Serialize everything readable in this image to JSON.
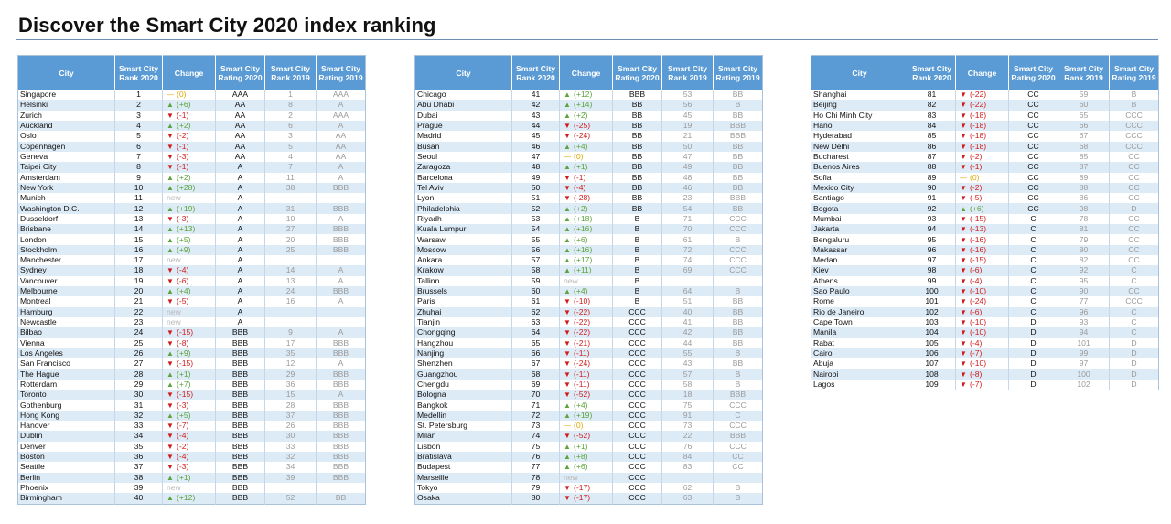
{
  "title": "Discover the Smart City 2020 index ranking",
  "colors": {
    "header": "#5b9bd5",
    "stripe": "#ddebf7",
    "up": "#5ba33b",
    "down": "#d11a1a",
    "same": "#e3a800",
    "muted": "#9a9a9a"
  },
  "icons": {
    "up": "triangle-up-icon",
    "down": "triangle-down-icon",
    "same": "dash-icon"
  },
  "headers": [
    "City",
    "Smart City Rank 2020",
    "Change",
    "Smart City Rating 2020",
    "Smart City Rank 2019",
    "Smart City Rating 2019"
  ],
  "tables": [
    [
      [
        "Singapore",
        "1",
        "—",
        "(0)",
        "AAA",
        "1",
        "AAA"
      ],
      [
        "Helsinki",
        "2",
        "▲",
        "(+6)",
        "AA",
        "8",
        "A"
      ],
      [
        "Zurich",
        "3",
        "▼",
        "(-1)",
        "AA",
        "2",
        "AAA"
      ],
      [
        "Auckland",
        "4",
        "▲",
        "(+2)",
        "AA",
        "6",
        "A"
      ],
      [
        "Oslo",
        "5",
        "▼",
        "(-2)",
        "AA",
        "3",
        "AA"
      ],
      [
        "Copenhagen",
        "6",
        "▼",
        "(-1)",
        "AA",
        "5",
        "AA"
      ],
      [
        "Geneva",
        "7",
        "▼",
        "(-3)",
        "AA",
        "4",
        "AA"
      ],
      [
        "Taipei City",
        "8",
        "▼",
        "(-1)",
        "A",
        "7",
        "A"
      ],
      [
        "Amsterdam",
        "9",
        "▲",
        "(+2)",
        "A",
        "11",
        "A"
      ],
      [
        "New York",
        "10",
        "▲",
        "(+28)",
        "A",
        "38",
        "BBB"
      ],
      [
        "Munich",
        "11",
        "",
        "new",
        "A",
        "",
        ""
      ],
      [
        "Washington D.C.",
        "12",
        "▲",
        "(+19)",
        "A",
        "31",
        "BBB"
      ],
      [
        "Dusseldorf",
        "13",
        "▼",
        "(-3)",
        "A",
        "10",
        "A"
      ],
      [
        "Brisbane",
        "14",
        "▲",
        "(+13)",
        "A",
        "27",
        "BBB"
      ],
      [
        "London",
        "15",
        "▲",
        "(+5)",
        "A",
        "20",
        "BBB"
      ],
      [
        "Stockholm",
        "16",
        "▲",
        "(+9)",
        "A",
        "25",
        "BBB"
      ],
      [
        "Manchester",
        "17",
        "",
        "new",
        "A",
        "",
        ""
      ],
      [
        "Sydney",
        "18",
        "▼",
        "(-4)",
        "A",
        "14",
        "A"
      ],
      [
        "Vancouver",
        "19",
        "▼",
        "(-6)",
        "A",
        "13",
        "A"
      ],
      [
        "Melbourne",
        "20",
        "▲",
        "(+4)",
        "A",
        "24",
        "BBB"
      ],
      [
        "Montreal",
        "21",
        "▼",
        "(-5)",
        "A",
        "16",
        "A"
      ],
      [
        "Hamburg",
        "22",
        "",
        "new",
        "A",
        "",
        ""
      ],
      [
        "Newcastle",
        "23",
        "",
        "new",
        "A",
        "",
        ""
      ],
      [
        "Bilbao",
        "24",
        "▼",
        "(-15)",
        "BBB",
        "9",
        "A"
      ],
      [
        "Vienna",
        "25",
        "▼",
        "(-8)",
        "BBB",
        "17",
        "BBB"
      ],
      [
        "Los Angeles",
        "26",
        "▲",
        "(+9)",
        "BBB",
        "35",
        "BBB"
      ],
      [
        "San Francisco",
        "27",
        "▼",
        "(-15)",
        "BBB",
        "12",
        "A"
      ],
      [
        "The Hague",
        "28",
        "▲",
        "(+1)",
        "BBB",
        "29",
        "BBB"
      ],
      [
        "Rotterdam",
        "29",
        "▲",
        "(+7)",
        "BBB",
        "36",
        "BBB"
      ],
      [
        "Toronto",
        "30",
        "▼",
        "(-15)",
        "BBB",
        "15",
        "A"
      ],
      [
        "Gothenburg",
        "31",
        "▼",
        "(-3)",
        "BBB",
        "28",
        "BBB"
      ],
      [
        "Hong Kong",
        "32",
        "▲",
        "(+5)",
        "BBB",
        "37",
        "BBB"
      ],
      [
        "Hanover",
        "33",
        "▼",
        "(-7)",
        "BBB",
        "26",
        "BBB"
      ],
      [
        "Dublin",
        "34",
        "▼",
        "(-4)",
        "BBB",
        "30",
        "BBB"
      ],
      [
        "Denver",
        "35",
        "▼",
        "(-2)",
        "BBB",
        "33",
        "BBB"
      ],
      [
        "Boston",
        "36",
        "▼",
        "(-4)",
        "BBB",
        "32",
        "BBB"
      ],
      [
        "Seattle",
        "37",
        "▼",
        "(-3)",
        "BBB",
        "34",
        "BBB"
      ],
      [
        "Berlin",
        "38",
        "▲",
        "(+1)",
        "BBB",
        "39",
        "BBB"
      ],
      [
        "Phoenix",
        "39",
        "",
        "new",
        "BBB",
        "",
        ""
      ],
      [
        "Birmingham",
        "40",
        "▲",
        "(+12)",
        "BBB",
        "52",
        "BB"
      ]
    ],
    [
      [
        "Chicago",
        "41",
        "▲",
        "(+12)",
        "BBB",
        "53",
        "BB"
      ],
      [
        "Abu Dhabi",
        "42",
        "▲",
        "(+14)",
        "BB",
        "56",
        "B"
      ],
      [
        "Dubai",
        "43",
        "▲",
        "(+2)",
        "BB",
        "45",
        "BB"
      ],
      [
        "Prague",
        "44",
        "▼",
        "(-25)",
        "BB",
        "19",
        "BBB"
      ],
      [
        "Madrid",
        "45",
        "▼",
        "(-24)",
        "BB",
        "21",
        "BBB"
      ],
      [
        "Busan",
        "46",
        "▲",
        "(+4)",
        "BB",
        "50",
        "BB"
      ],
      [
        "Seoul",
        "47",
        "—",
        "(0)",
        "BB",
        "47",
        "BB"
      ],
      [
        "Zaragoza",
        "48",
        "▲",
        "(+1)",
        "BB",
        "49",
        "BB"
      ],
      [
        "Barcelona",
        "49",
        "▼",
        "(-1)",
        "BB",
        "48",
        "BB"
      ],
      [
        "Tel Aviv",
        "50",
        "▼",
        "(-4)",
        "BB",
        "46",
        "BB"
      ],
      [
        "Lyon",
        "51",
        "▼",
        "(-28)",
        "BB",
        "23",
        "BBB"
      ],
      [
        "Philadelphia",
        "52",
        "▲",
        "(+2)",
        "BB",
        "54",
        "BB"
      ],
      [
        "Riyadh",
        "53",
        "▲",
        "(+18)",
        "B",
        "71",
        "CCC"
      ],
      [
        "Kuala Lumpur",
        "54",
        "▲",
        "(+16)",
        "B",
        "70",
        "CCC"
      ],
      [
        "Warsaw",
        "55",
        "▲",
        "(+6)",
        "B",
        "61",
        "B"
      ],
      [
        "Moscow",
        "56",
        "▲",
        "(+16)",
        "B",
        "72",
        "CCC"
      ],
      [
        "Ankara",
        "57",
        "▲",
        "(+17)",
        "B",
        "74",
        "CCC"
      ],
      [
        "Krakow",
        "58",
        "▲",
        "(+11)",
        "B",
        "69",
        "CCC"
      ],
      [
        "Tallinn",
        "59",
        "",
        "new",
        "B",
        "",
        ""
      ],
      [
        "Brussels",
        "60",
        "▲",
        "(+4)",
        "B",
        "64",
        "B"
      ],
      [
        "Paris",
        "61",
        "▼",
        "(-10)",
        "B",
        "51",
        "BB"
      ],
      [
        "Zhuhai",
        "62",
        "▼",
        "(-22)",
        "CCC",
        "40",
        "BB"
      ],
      [
        "Tianjin",
        "63",
        "▼",
        "(-22)",
        "CCC",
        "41",
        "BB"
      ],
      [
        "Chongqing",
        "64",
        "▼",
        "(-22)",
        "CCC",
        "42",
        "BB"
      ],
      [
        "Hangzhou",
        "65",
        "▼",
        "(-21)",
        "CCC",
        "44",
        "BB"
      ],
      [
        "Nanjing",
        "66",
        "▼",
        "(-11)",
        "CCC",
        "55",
        "B"
      ],
      [
        "Shenzhen",
        "67",
        "▼",
        "(-24)",
        "CCC",
        "43",
        "BB"
      ],
      [
        "Guangzhou",
        "68",
        "▼",
        "(-11)",
        "CCC",
        "57",
        "B"
      ],
      [
        "Chengdu",
        "69",
        "▼",
        "(-11)",
        "CCC",
        "58",
        "B"
      ],
      [
        "Bologna",
        "70",
        "▼",
        "(-52)",
        "CCC",
        "18",
        "BBB"
      ],
      [
        "Bangkok",
        "71",
        "▲",
        "(+4)",
        "CCC",
        "75",
        "CCC"
      ],
      [
        "Medellin",
        "72",
        "▲",
        "(+19)",
        "CCC",
        "91",
        "C"
      ],
      [
        "St. Petersburg",
        "73",
        "—",
        "(0)",
        "CCC",
        "73",
        "CCC"
      ],
      [
        "Milan",
        "74",
        "▼",
        "(-52)",
        "CCC",
        "22",
        "BBB"
      ],
      [
        "Lisbon",
        "75",
        "▲",
        "(+1)",
        "CCC",
        "76",
        "CCC"
      ],
      [
        "Bratislava",
        "76",
        "▲",
        "(+8)",
        "CCC",
        "84",
        "CC"
      ],
      [
        "Budapest",
        "77",
        "▲",
        "(+6)",
        "CCC",
        "83",
        "CC"
      ],
      [
        "Marseille",
        "78",
        "",
        "new",
        "CCC",
        "",
        ""
      ],
      [
        "Tokyo",
        "79",
        "▼",
        "(-17)",
        "CCC",
        "62",
        "B"
      ],
      [
        "Osaka",
        "80",
        "▼",
        "(-17)",
        "CCC",
        "63",
        "B"
      ]
    ],
    [
      [
        "Shanghai",
        "81",
        "▼",
        "(-22)",
        "CC",
        "59",
        "B"
      ],
      [
        "Beijing",
        "82",
        "▼",
        "(-22)",
        "CC",
        "60",
        "B"
      ],
      [
        "Ho Chi Minh City",
        "83",
        "▼",
        "(-18)",
        "CC",
        "65",
        "CCC"
      ],
      [
        "Hanoi",
        "84",
        "▼",
        "(-18)",
        "CC",
        "66",
        "CCC"
      ],
      [
        "Hyderabad",
        "85",
        "▼",
        "(-18)",
        "CC",
        "67",
        "CCC"
      ],
      [
        "New Delhi",
        "86",
        "▼",
        "(-18)",
        "CC",
        "68",
        "CCC"
      ],
      [
        "Bucharest",
        "87",
        "▼",
        "(-2)",
        "CC",
        "85",
        "CC"
      ],
      [
        "Buenos Aires",
        "88",
        "▼",
        "(-1)",
        "CC",
        "87",
        "CC"
      ],
      [
        "Sofia",
        "89",
        "—",
        "(0)",
        "CC",
        "89",
        "CC"
      ],
      [
        "Mexico City",
        "90",
        "▼",
        "(-2)",
        "CC",
        "88",
        "CC"
      ],
      [
        "Santiago",
        "91",
        "▼",
        "(-5)",
        "CC",
        "86",
        "CC"
      ],
      [
        "Bogota",
        "92",
        "▲",
        "(+6)",
        "CC",
        "98",
        "D"
      ],
      [
        "Mumbai",
        "93",
        "▼",
        "(-15)",
        "C",
        "78",
        "CC"
      ],
      [
        "Jakarta",
        "94",
        "▼",
        "(-13)",
        "C",
        "81",
        "CC"
      ],
      [
        "Bengaluru",
        "95",
        "▼",
        "(-16)",
        "C",
        "79",
        "CC"
      ],
      [
        "Makassar",
        "96",
        "▼",
        "(-16)",
        "C",
        "80",
        "CC"
      ],
      [
        "Medan",
        "97",
        "▼",
        "(-15)",
        "C",
        "82",
        "CC"
      ],
      [
        "Kiev",
        "98",
        "▼",
        "(-6)",
        "C",
        "92",
        "C"
      ],
      [
        "Athens",
        "99",
        "▼",
        "(-4)",
        "C",
        "95",
        "C"
      ],
      [
        "Sao Paulo",
        "100",
        "▼",
        "(-10)",
        "C",
        "90",
        "CC"
      ],
      [
        "Rome",
        "101",
        "▼",
        "(-24)",
        "C",
        "77",
        "CCC"
      ],
      [
        "Rio de Janeiro",
        "102",
        "▼",
        "(-6)",
        "C",
        "96",
        "C"
      ],
      [
        "Cape Town",
        "103",
        "▼",
        "(-10)",
        "D",
        "93",
        "C"
      ],
      [
        "Manila",
        "104",
        "▼",
        "(-10)",
        "D",
        "94",
        "C"
      ],
      [
        "Rabat",
        "105",
        "▼",
        "(-4)",
        "D",
        "101",
        "D"
      ],
      [
        "Cairo",
        "106",
        "▼",
        "(-7)",
        "D",
        "99",
        "D"
      ],
      [
        "Abuja",
        "107",
        "▼",
        "(-10)",
        "D",
        "97",
        "D"
      ],
      [
        "Nairobi",
        "108",
        "▼",
        "(-8)",
        "D",
        "100",
        "D"
      ],
      [
        "Lagos",
        "109",
        "▼",
        "(-7)",
        "D",
        "102",
        "D"
      ]
    ]
  ]
}
